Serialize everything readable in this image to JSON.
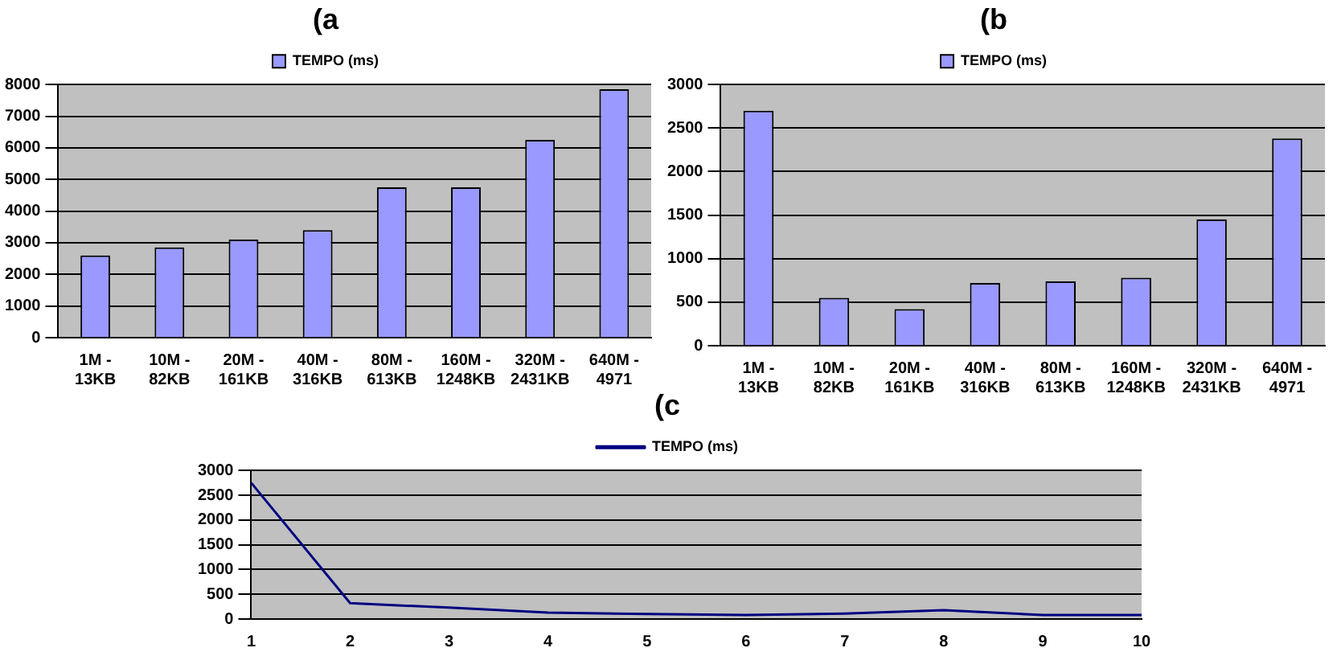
{
  "chart_data": [
    {
      "type": "bar",
      "title": "(a",
      "categories": [
        "1M - 13KB",
        "10M - 82KB",
        "20M - 161KB",
        "40M - 316KB",
        "80M - 613KB",
        "160M - 1248KB",
        "320M - 2431KB",
        "640M - 4971"
      ],
      "series": [
        {
          "name": "TEMPO (ms)",
          "color": "#9999ff",
          "values": [
            2600,
            2850,
            3100,
            3400,
            4750,
            4750,
            6250,
            7850
          ]
        }
      ],
      "ylim": [
        0,
        8000
      ],
      "yticks": [
        0,
        1000,
        2000,
        3000,
        4000,
        5000,
        6000,
        7000,
        8000
      ],
      "grid": "y",
      "legend": "top"
    },
    {
      "type": "bar",
      "title": "(b",
      "categories": [
        "1M - 13KB",
        "10M - 82KB",
        "20M - 161KB",
        "40M - 316KB",
        "80M - 613KB",
        "160M - 1248KB",
        "320M - 2431KB",
        "640M - 4971"
      ],
      "series": [
        {
          "name": "TEMPO (ms)",
          "color": "#9999ff",
          "values": [
            2700,
            550,
            420,
            720,
            740,
            780,
            1450,
            2380
          ]
        }
      ],
      "ylim": [
        0,
        3000
      ],
      "yticks": [
        0,
        500,
        1000,
        1500,
        2000,
        2500,
        3000
      ],
      "grid": "y",
      "legend": "top"
    },
    {
      "type": "line",
      "title": "(c",
      "categories": [
        "1",
        "2",
        "3",
        "4",
        "5",
        "6",
        "7",
        "8",
        "9",
        "10"
      ],
      "series": [
        {
          "name": "TEMPO (ms)",
          "color": "#000080",
          "values": [
            2750,
            320,
            230,
            130,
            100,
            80,
            110,
            180,
            80,
            80
          ]
        }
      ],
      "ylim": [
        0,
        3000
      ],
      "yticks": [
        0,
        500,
        1000,
        1500,
        2000,
        2500,
        3000
      ],
      "grid": "y",
      "legend": "top",
      "marker": "none"
    }
  ]
}
